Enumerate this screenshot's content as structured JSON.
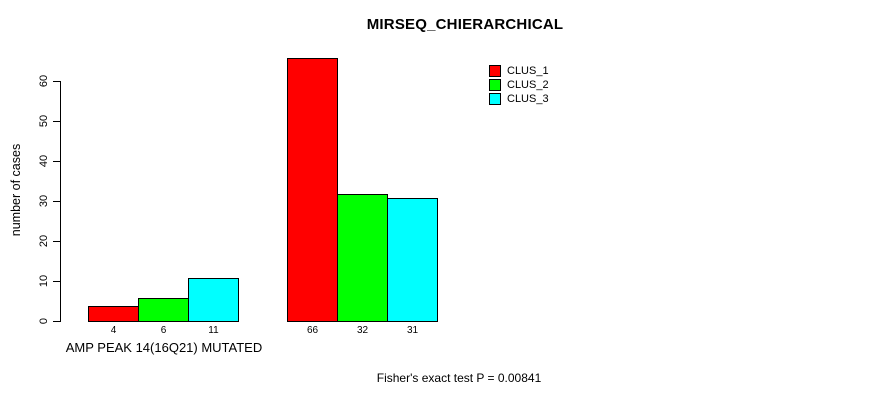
{
  "chart_data": {
    "type": "bar",
    "title": "MIRSEQ_CHIERARCHICAL",
    "ylabel": "number of cases",
    "ylim": [
      0,
      66
    ],
    "yticks": [
      0,
      10,
      20,
      30,
      40,
      50,
      60
    ],
    "grid": false,
    "legend_position": "top-right",
    "categories": [
      "AMP PEAK 14(16Q21) MUTATED",
      ""
    ],
    "series": [
      {
        "name": "CLUS_1",
        "color": "#ff0000",
        "values": [
          4,
          66
        ]
      },
      {
        "name": "CLUS_2",
        "color": "#00ff00",
        "values": [
          6,
          32
        ]
      },
      {
        "name": "CLUS_3",
        "color": "#00ffff",
        "values": [
          11,
          31
        ]
      }
    ],
    "bar_value_labels": [
      [
        "4",
        "6",
        "11"
      ],
      [
        "66",
        "32",
        "31"
      ]
    ],
    "footnote": "Fisher's exact test P = 0.00841",
    "colors": {
      "bar_border": "#000000",
      "axis": "#000000",
      "text": "#000000",
      "background": "#ffffff"
    }
  }
}
